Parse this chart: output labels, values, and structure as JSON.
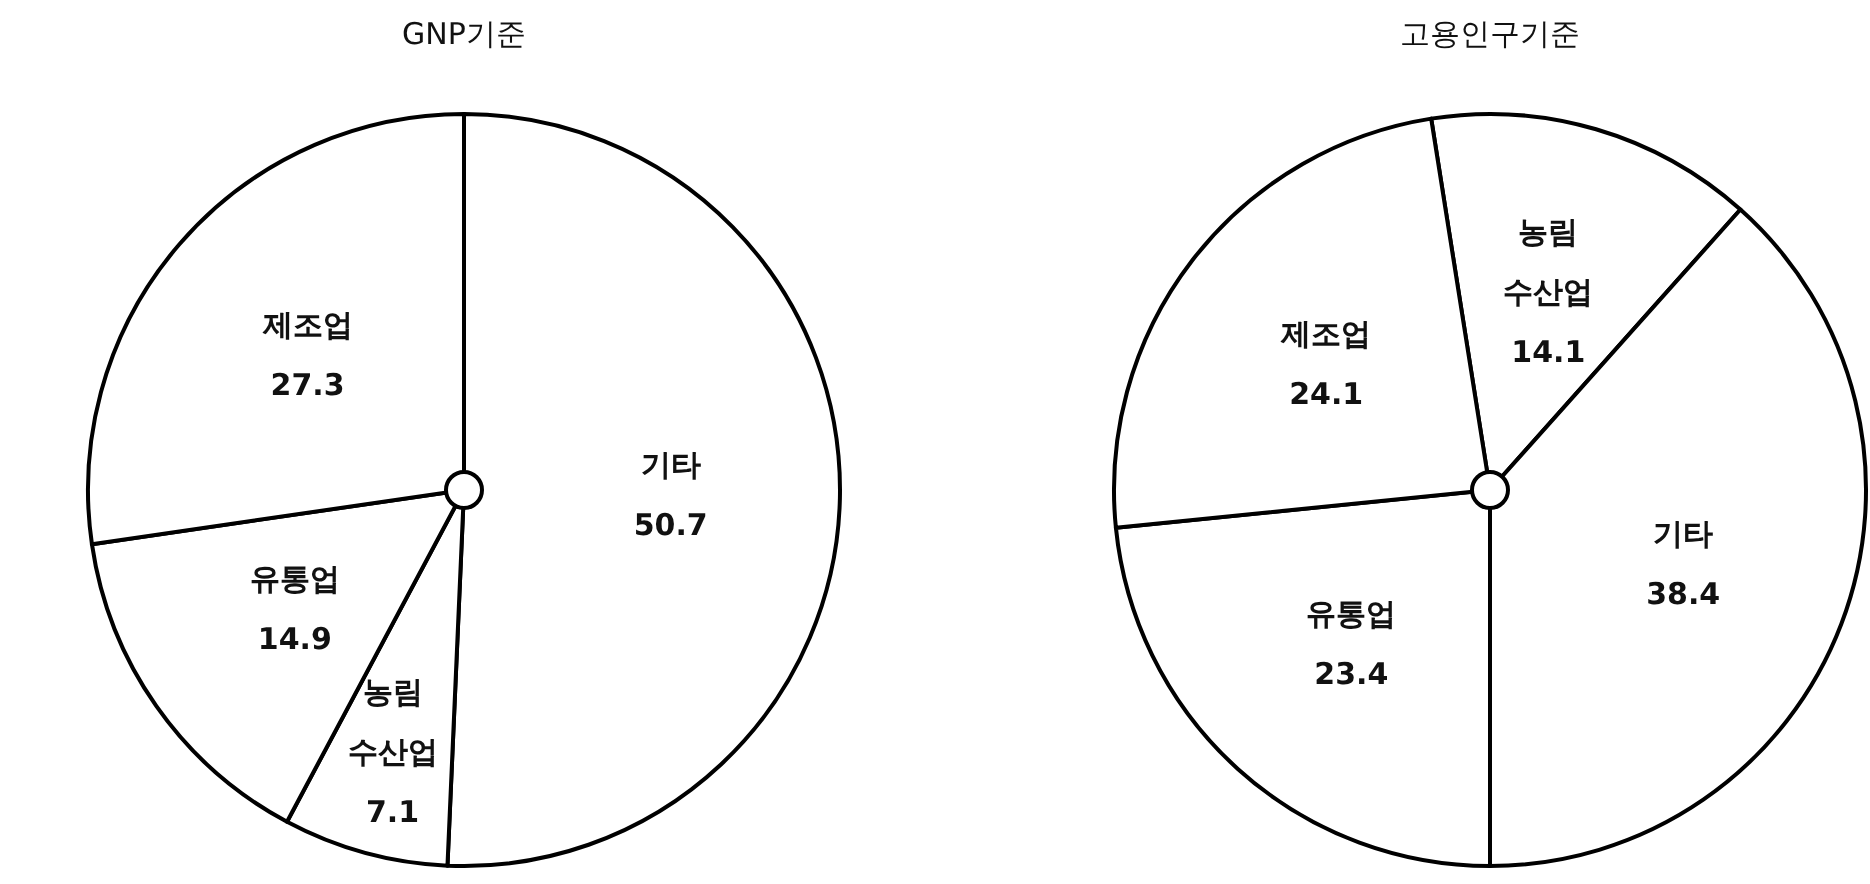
{
  "chart_data": [
    {
      "type": "pie",
      "title": "GNP기준",
      "categories": [
        "기타",
        "농림\n수산업",
        "유통업",
        "제조업"
      ],
      "values": [
        50.7,
        7.1,
        14.9,
        27.3
      ],
      "colors": [
        "#ffffff",
        "#ffffff",
        "#ffffff",
        "#ffffff"
      ],
      "data_labels": true
    },
    {
      "type": "pie",
      "title": "고용인구기준",
      "categories": [
        "농림\n수산업",
        "기타",
        "유통업",
        "제조업"
      ],
      "values": [
        14.1,
        38.4,
        23.4,
        24.1
      ],
      "colors": [
        "#ffffff",
        "#ffffff",
        "#ffffff",
        "#ffffff"
      ],
      "data_labels": true
    }
  ]
}
